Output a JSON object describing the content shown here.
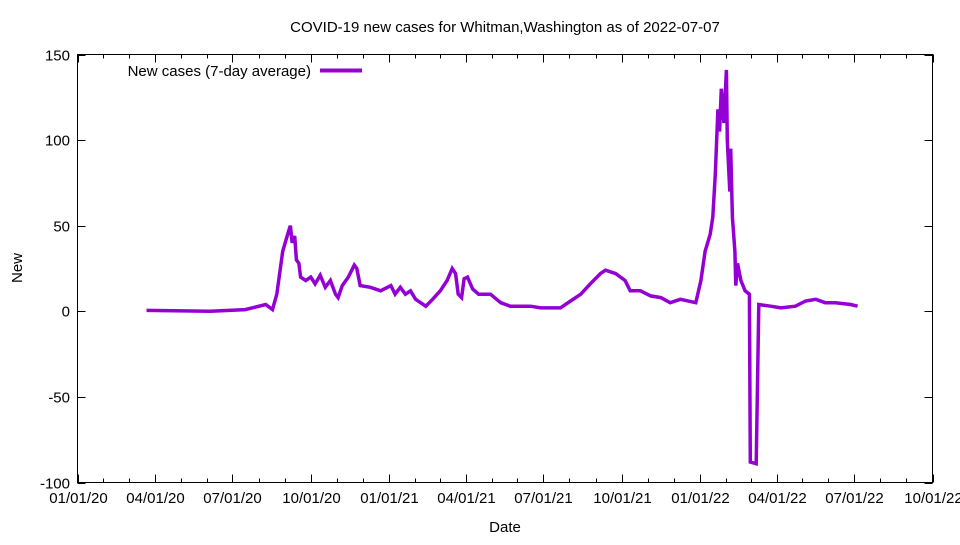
{
  "chart_data": {
    "type": "line",
    "title": "COVID-19 new cases for Whitman,Washington as of 2022-07-07",
    "xlabel": "Date",
    "ylabel": "New",
    "xlim": [
      "2020-01-01",
      "2022-10-01"
    ],
    "ylim": [
      -100,
      150
    ],
    "yticks": [
      -100,
      -50,
      0,
      50,
      100,
      150
    ],
    "xticks": [
      "2020-01-01",
      "2020-04-01",
      "2020-07-01",
      "2020-10-01",
      "2021-01-01",
      "2021-04-01",
      "2021-07-01",
      "2021-10-01",
      "2022-01-01",
      "2022-04-01",
      "2022-07-01",
      "2022-10-01"
    ],
    "xtick_labels": [
      "01/01/20",
      "04/01/20",
      "07/01/20",
      "10/01/20",
      "01/01/21",
      "04/01/21",
      "07/01/21",
      "10/01/21",
      "01/01/22",
      "04/01/22",
      "07/01/22",
      "10/01/22"
    ],
    "grid": false,
    "legend_placement": "top-left",
    "series": [
      {
        "name": "New cases (7-day average)",
        "color": "#9400d3",
        "points": [
          [
            "2020-03-22",
            0.5
          ],
          [
            "2020-06-05",
            0
          ],
          [
            "2020-07-16",
            1
          ],
          [
            "2020-08-09",
            4
          ],
          [
            "2020-08-17",
            1
          ],
          [
            "2020-08-22",
            10
          ],
          [
            "2020-08-29",
            35
          ],
          [
            "2020-09-05",
            47
          ],
          [
            "2020-09-07",
            50
          ],
          [
            "2020-09-09",
            40
          ],
          [
            "2020-09-12",
            44
          ],
          [
            "2020-09-14",
            30
          ],
          [
            "2020-09-17",
            28
          ],
          [
            "2020-09-19",
            20
          ],
          [
            "2020-09-25",
            18
          ],
          [
            "2020-10-01",
            20
          ],
          [
            "2020-10-06",
            16
          ],
          [
            "2020-10-12",
            21
          ],
          [
            "2020-10-18",
            14
          ],
          [
            "2020-10-24",
            18
          ],
          [
            "2020-10-30",
            10
          ],
          [
            "2020-11-02",
            8
          ],
          [
            "2020-11-07",
            15
          ],
          [
            "2020-11-14",
            20
          ],
          [
            "2020-11-21",
            27
          ],
          [
            "2020-11-24",
            25
          ],
          [
            "2020-11-28",
            15
          ],
          [
            "2020-12-10",
            14
          ],
          [
            "2020-12-22",
            12
          ],
          [
            "2021-01-03",
            15
          ],
          [
            "2021-01-08",
            10
          ],
          [
            "2021-01-14",
            14
          ],
          [
            "2021-01-20",
            10
          ],
          [
            "2021-01-26",
            12
          ],
          [
            "2021-02-01",
            7
          ],
          [
            "2021-02-13",
            3
          ],
          [
            "2021-02-21",
            7
          ],
          [
            "2021-03-02",
            12
          ],
          [
            "2021-03-10",
            18
          ],
          [
            "2021-03-16",
            25
          ],
          [
            "2021-03-20",
            22
          ],
          [
            "2021-03-23",
            10
          ],
          [
            "2021-03-27",
            8
          ],
          [
            "2021-03-30",
            19
          ],
          [
            "2021-04-03",
            20
          ],
          [
            "2021-04-09",
            13
          ],
          [
            "2021-04-16",
            10
          ],
          [
            "2021-04-30",
            10
          ],
          [
            "2021-05-12",
            5
          ],
          [
            "2021-05-23",
            3
          ],
          [
            "2021-06-16",
            3
          ],
          [
            "2021-06-28",
            2
          ],
          [
            "2021-07-09",
            2
          ],
          [
            "2021-07-21",
            2
          ],
          [
            "2021-08-02",
            6
          ],
          [
            "2021-08-14",
            10
          ],
          [
            "2021-08-25",
            16
          ],
          [
            "2021-09-06",
            22
          ],
          [
            "2021-09-12",
            24
          ],
          [
            "2021-09-24",
            22
          ],
          [
            "2021-10-05",
            18
          ],
          [
            "2021-10-11",
            12
          ],
          [
            "2021-10-23",
            12
          ],
          [
            "2021-11-04",
            9
          ],
          [
            "2021-11-16",
            8
          ],
          [
            "2021-11-27",
            5
          ],
          [
            "2021-12-09",
            7
          ],
          [
            "2021-12-27",
            5
          ],
          [
            "2022-01-02",
            18
          ],
          [
            "2022-01-07",
            35
          ],
          [
            "2022-01-13",
            45
          ],
          [
            "2022-01-16",
            55
          ],
          [
            "2022-01-19",
            80
          ],
          [
            "2022-01-22",
            118
          ],
          [
            "2022-01-24",
            105
          ],
          [
            "2022-01-26",
            130
          ],
          [
            "2022-01-29",
            110
          ],
          [
            "2022-02-01",
            141
          ],
          [
            "2022-02-02",
            100
          ],
          [
            "2022-02-05",
            70
          ],
          [
            "2022-02-06",
            95
          ],
          [
            "2022-02-08",
            55
          ],
          [
            "2022-02-11",
            35
          ],
          [
            "2022-02-12",
            15
          ],
          [
            "2022-02-14",
            28
          ],
          [
            "2022-02-18",
            18
          ],
          [
            "2022-02-23",
            12
          ],
          [
            "2022-02-28",
            10
          ],
          [
            "2022-03-01",
            -88
          ],
          [
            "2022-03-08",
            -89
          ],
          [
            "2022-03-11",
            4
          ],
          [
            "2022-03-25",
            3
          ],
          [
            "2022-04-06",
            2
          ],
          [
            "2022-04-23",
            3
          ],
          [
            "2022-05-05",
            6
          ],
          [
            "2022-05-17",
            7
          ],
          [
            "2022-05-28",
            5
          ],
          [
            "2022-06-09",
            5
          ],
          [
            "2022-06-27",
            4
          ],
          [
            "2022-07-05",
            3
          ]
        ]
      }
    ]
  }
}
